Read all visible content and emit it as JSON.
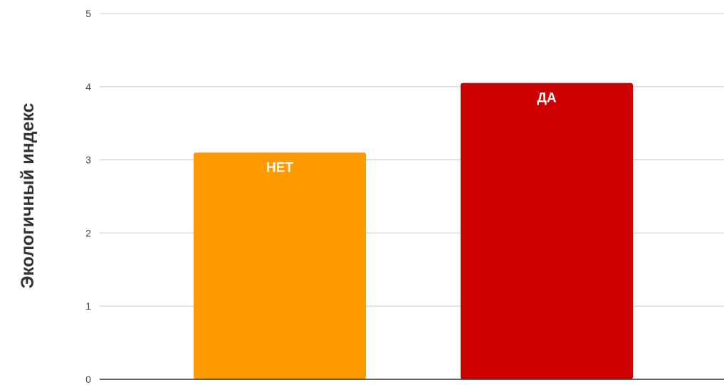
{
  "chart_data": {
    "type": "bar",
    "categories": [
      "НЕТ",
      "ДА"
    ],
    "values": [
      3.1,
      4.05
    ],
    "colors": [
      "#ff9900",
      "#cc0000"
    ],
    "title": "",
    "xlabel": "",
    "ylabel": "Экологичный индекс",
    "ylim": [
      0,
      5
    ],
    "yticks": [
      "0",
      "1",
      "2",
      "3",
      "4",
      "5"
    ],
    "grid": true,
    "legend": "none"
  }
}
